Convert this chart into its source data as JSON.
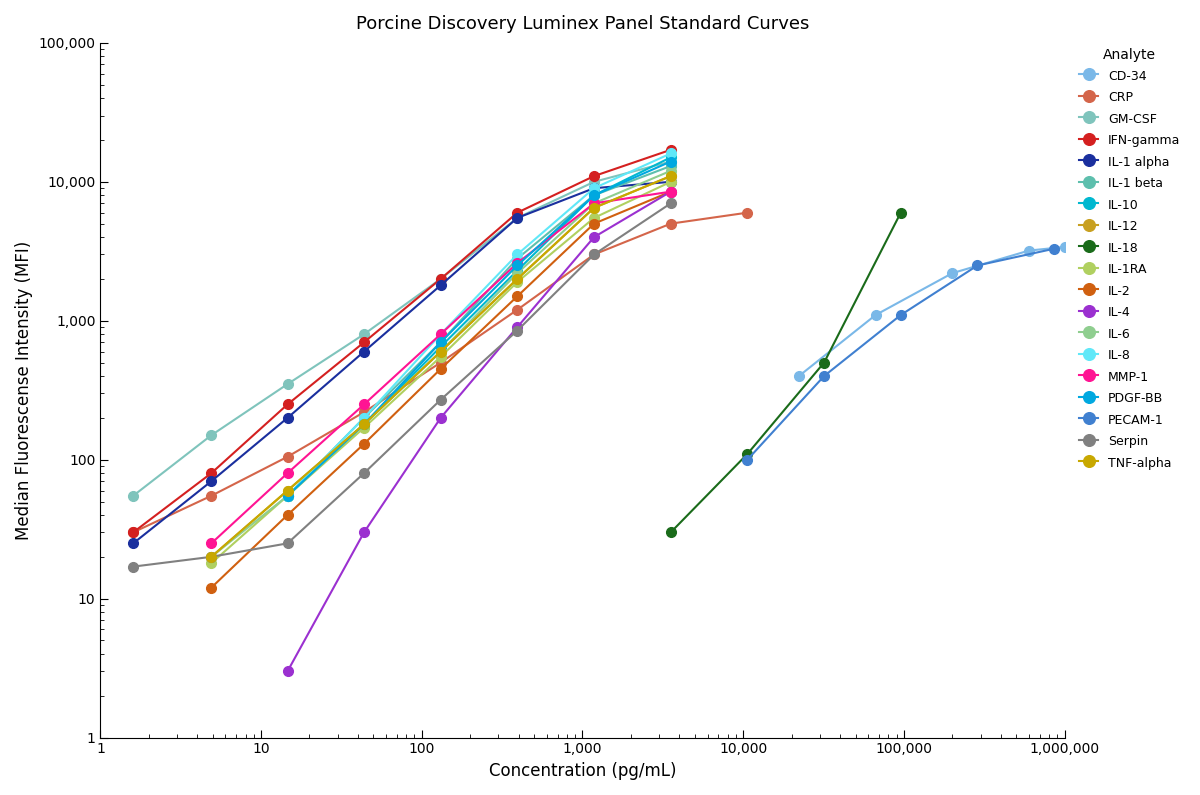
{
  "title": "Porcine Discovery Luminex Panel Standard Curves",
  "xlabel": "Concentration (pg/mL)",
  "ylabel": "Median Fluorescense Intensity (MFI)",
  "curves": {
    "CD-34": {
      "color": "#7ab8e8",
      "x": [
        3.2,
        9.8,
        30,
        91,
        274,
        822,
        2469,
        7407,
        22222,
        66667,
        200000,
        600000,
        1000000
      ],
      "y": [
        null,
        null,
        null,
        null,
        null,
        null,
        null,
        null,
        400,
        1100,
        2200,
        3200,
        3400
      ]
    },
    "CRP": {
      "color": "#d4654a",
      "x": [
        1.6,
        4.9,
        14.6,
        43.7,
        131,
        393,
        1180,
        3541,
        10624
      ],
      "y": [
        30,
        55,
        105,
        220,
        500,
        1200,
        3000,
        5000,
        6000
      ]
    },
    "GM-CSF": {
      "color": "#7fc4bc",
      "x": [
        1.6,
        4.9,
        14.6,
        43.7,
        131,
        393,
        1180,
        3541
      ],
      "y": [
        55,
        150,
        350,
        800,
        2000,
        5500,
        10000,
        14000
      ]
    },
    "IFN-gamma": {
      "color": "#d42020",
      "x": [
        1.6,
        4.9,
        14.6,
        43.7,
        131,
        393,
        1180,
        3541
      ],
      "y": [
        30,
        80,
        250,
        700,
        2000,
        6000,
        11000,
        17000
      ]
    },
    "IL-1 alpha": {
      "color": "#1a2f9e",
      "x": [
        1.6,
        4.9,
        14.6,
        43.7,
        131,
        393,
        1180,
        3541
      ],
      "y": [
        25,
        70,
        200,
        600,
        1800,
        5500,
        9000,
        10000
      ]
    },
    "IL-1 beta": {
      "color": "#5dbfad",
      "x": [
        1.6,
        4.9,
        14.6,
        43.7,
        131,
        393,
        1180,
        3541
      ],
      "y": [
        null,
        null,
        55,
        200,
        700,
        2800,
        8000,
        13000
      ]
    },
    "IL-10": {
      "color": "#00b8d0",
      "x": [
        1.6,
        4.9,
        14.6,
        43.7,
        131,
        393,
        1180,
        3541
      ],
      "y": [
        null,
        null,
        55,
        180,
        650,
        2300,
        8000,
        15000
      ]
    },
    "IL-12": {
      "color": "#c8a020",
      "x": [
        1.6,
        4.9,
        14.6,
        43.7,
        131,
        393,
        1180,
        3541
      ],
      "y": [
        null,
        20,
        60,
        180,
        600,
        2000,
        6500,
        11000
      ]
    },
    "IL-18": {
      "color": "#1a6b1a",
      "x": [
        4.9,
        14.6,
        43.7,
        131,
        393,
        1180,
        3541,
        10624,
        31872,
        95616
      ],
      "y": [
        null,
        null,
        null,
        null,
        null,
        null,
        30,
        110,
        500,
        6000
      ]
    },
    "IL-1RA": {
      "color": "#b0d060",
      "x": [
        1.6,
        4.9,
        14.6,
        43.7,
        131,
        393,
        1180,
        3541
      ],
      "y": [
        null,
        18,
        55,
        170,
        550,
        1900,
        5500,
        10000
      ]
    },
    "IL-2": {
      "color": "#d06010",
      "x": [
        1.6,
        4.9,
        14.6,
        43.7,
        131,
        393,
        1180,
        3541
      ],
      "y": [
        null,
        12,
        40,
        130,
        450,
        1500,
        5000,
        8500
      ]
    },
    "IL-4": {
      "color": "#9b30d0",
      "x": [
        14.6,
        43.7,
        131,
        393,
        1180,
        3541
      ],
      "y": [
        3,
        30,
        200,
        900,
        4000,
        8500
      ]
    },
    "IL-6": {
      "color": "#8fce8f",
      "x": [
        1.6,
        4.9,
        14.6,
        43.7,
        131,
        393,
        1180,
        3541
      ],
      "y": [
        null,
        20,
        55,
        180,
        600,
        2200,
        7000,
        12000
      ]
    },
    "IL-8": {
      "color": "#60e8f8",
      "x": [
        1.6,
        4.9,
        14.6,
        43.7,
        131,
        393,
        1180,
        3541
      ],
      "y": [
        null,
        null,
        55,
        200,
        800,
        3000,
        9000,
        16000
      ]
    },
    "MMP-1": {
      "color": "#ff1493",
      "x": [
        1.6,
        4.9,
        14.6,
        43.7,
        131,
        393,
        1180,
        3541
      ],
      "y": [
        null,
        25,
        80,
        250,
        800,
        2600,
        7000,
        8500
      ]
    },
    "PDGF-BB": {
      "color": "#00a8e0",
      "x": [
        1.6,
        4.9,
        14.6,
        43.7,
        131,
        393,
        1180,
        3541
      ],
      "y": [
        null,
        null,
        55,
        180,
        700,
        2500,
        8000,
        14000
      ]
    },
    "PECAM-1": {
      "color": "#4080d0",
      "x": [
        4.9,
        14.6,
        43.7,
        131,
        393,
        1180,
        3541,
        10624,
        31872,
        95616,
        286848,
        860544
      ],
      "y": [
        null,
        null,
        null,
        null,
        null,
        null,
        null,
        100,
        400,
        1100,
        2500,
        3300
      ]
    },
    "Serpin": {
      "color": "#808080",
      "x": [
        1.6,
        4.9,
        14.6,
        43.7,
        131,
        393,
        1180,
        3541
      ],
      "y": [
        17,
        20,
        25,
        80,
        270,
        850,
        3000,
        7000
      ]
    },
    "TNF-alpha": {
      "color": "#c8a800",
      "x": [
        1.6,
        4.9,
        14.6,
        43.7,
        131,
        393,
        1180,
        3541
      ],
      "y": [
        null,
        20,
        60,
        180,
        600,
        2000,
        6500,
        11000
      ]
    }
  },
  "legend_order": [
    "CD-34",
    "CRP",
    "GM-CSF",
    "IFN-gamma",
    "IL-1 alpha",
    "IL-1 beta",
    "IL-10",
    "IL-12",
    "IL-18",
    "IL-1RA",
    "IL-2",
    "IL-4",
    "IL-6",
    "IL-8",
    "MMP-1",
    "PDGF-BB",
    "PECAM-1",
    "Serpin",
    "TNF-alpha"
  ]
}
